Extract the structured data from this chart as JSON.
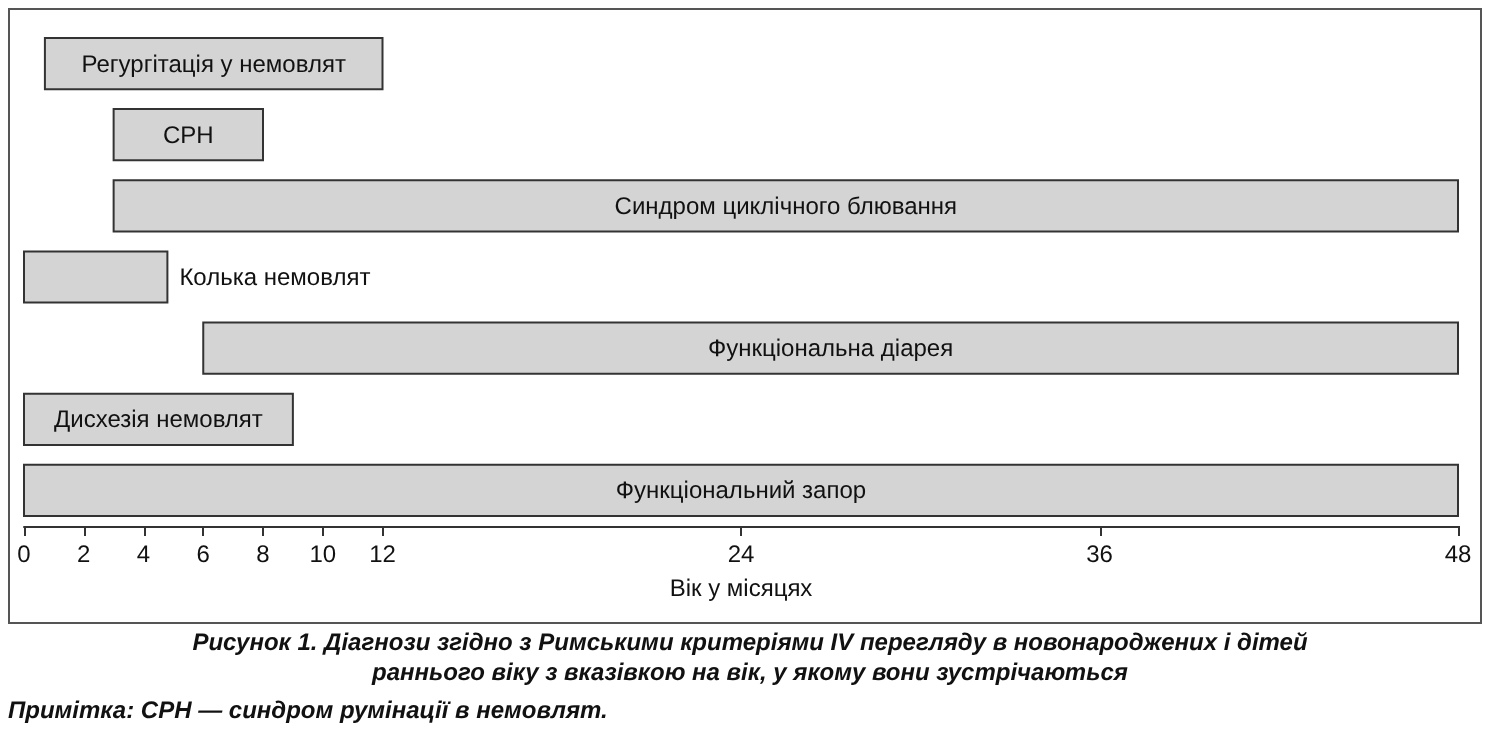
{
  "chart_data": {
    "type": "bar",
    "orientation": "horizontal",
    "title": "Рисунок 1. Діагнози згідно з Римськими критеріями IV перегляду в новонароджених і дітей раннього віку з вказівкою на вік, у якому вони зустрічаються",
    "xlabel": "Вік у місяцях",
    "annotations": [
      "Примітка: СРН — синдром румінації в немовлят."
    ],
    "categories": [
      "Регургітація у немовлят",
      "СРН",
      "Синдром циклічного блювання",
      "Колька немовлят",
      "Функціональна діарея",
      "Дисхезія немовлят",
      "Функціональний запор"
    ],
    "base": [
      0.7,
      3,
      3,
      0,
      6,
      0,
      0
    ],
    "values": [
      11.3,
      5,
      45,
      4.8,
      42,
      9,
      48
    ],
    "color": "#d4d4d4",
    "xlim": [
      0,
      48
    ],
    "xticks": [
      0,
      2,
      4,
      6,
      8,
      10,
      12,
      24,
      36,
      48
    ],
    "grid": false,
    "tick_labels": "x"
  }
}
